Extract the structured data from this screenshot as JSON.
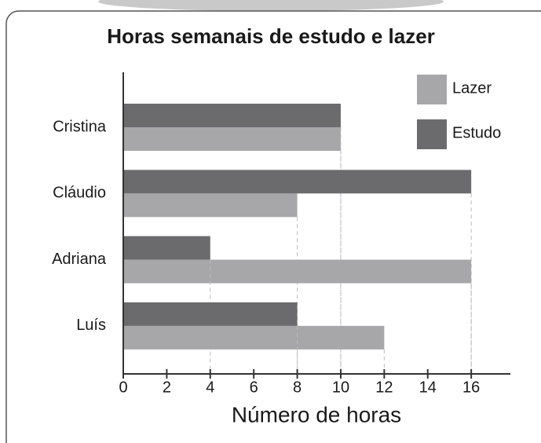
{
  "chart_data": {
    "type": "bar",
    "orientation": "horizontal",
    "title": "Horas semanais de estudo e lazer",
    "x_label": "Número de horas",
    "categories": [
      "Cristina",
      "Cláudio",
      "Adriana",
      "Luís"
    ],
    "series": [
      {
        "name": "Lazer",
        "color": "#a7a7a9",
        "values": [
          10,
          8,
          16,
          12
        ]
      },
      {
        "name": "Estudo",
        "color": "#6b6b6e",
        "values": [
          10,
          16,
          4,
          8
        ]
      }
    ],
    "xlim": [
      0,
      17.8
    ],
    "xticks": [
      0,
      2,
      4,
      6,
      8,
      10,
      12,
      14,
      16
    ],
    "legend": "top-right"
  }
}
